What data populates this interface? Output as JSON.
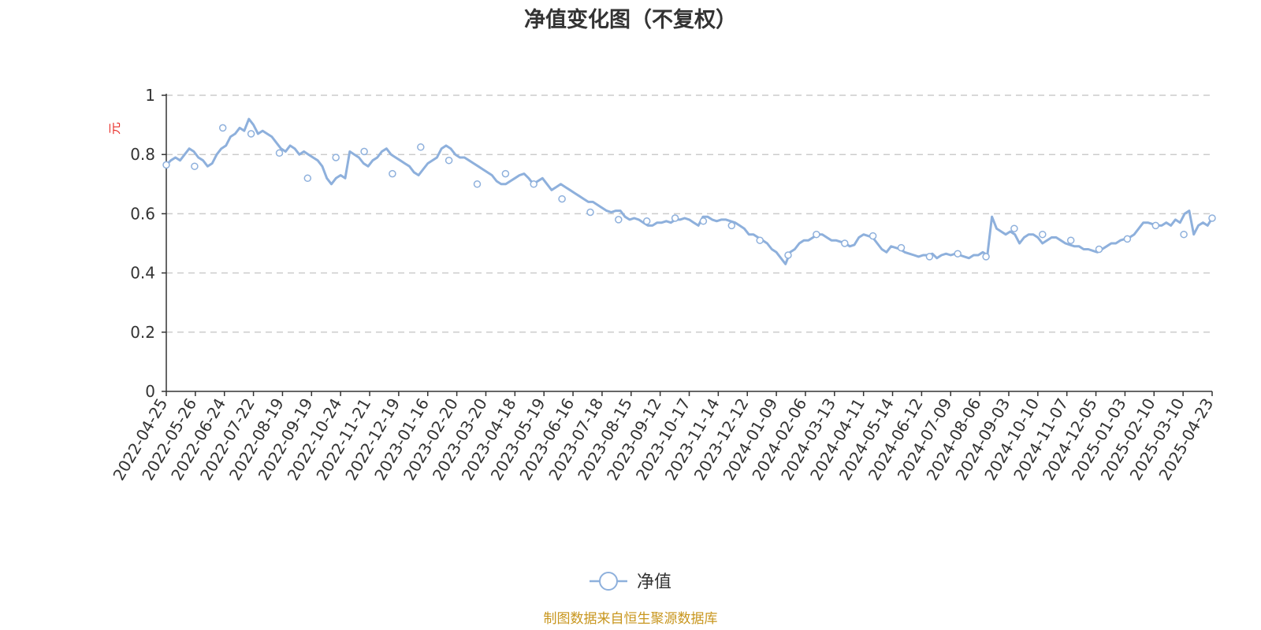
{
  "chart_data": {
    "type": "line",
    "title": "净值变化图（不复权）",
    "ylabel": "元",
    "ylim": [
      0,
      1
    ],
    "yticks": [
      "0",
      "0.2",
      "0.4",
      "0.6",
      "0.8",
      "1"
    ],
    "grid": true,
    "legend_position": "bottom",
    "x_tick_labels": [
      "2022-04-25",
      "2022-05-26",
      "2022-06-24",
      "2022-07-22",
      "2022-08-19",
      "2022-09-19",
      "2022-10-24",
      "2022-11-21",
      "2022-12-19",
      "2023-01-16",
      "2023-02-20",
      "2023-03-20",
      "2023-04-18",
      "2023-05-19",
      "2023-06-16",
      "2023-07-18",
      "2023-08-15",
      "2023-09-12",
      "2023-10-17",
      "2023-11-14",
      "2023-12-12",
      "2024-01-09",
      "2024-02-06",
      "2024-03-13",
      "2024-04-11",
      "2024-05-14",
      "2024-06-12",
      "2024-07-09",
      "2024-08-06",
      "2024-09-03",
      "2024-10-10",
      "2024-11-07",
      "2024-12-05",
      "2025-01-03",
      "2025-02-10",
      "2025-03-10",
      "2025-04-23"
    ],
    "series": [
      {
        "name": "净值",
        "color": "#8eb0dc",
        "marker_values": [
          0.765,
          0.76,
          0.89,
          0.87,
          0.805,
          0.72,
          0.79,
          0.81,
          0.735,
          0.825,
          0.78,
          0.7,
          0.735,
          0.7,
          0.65,
          0.605,
          0.58,
          0.575,
          0.585,
          0.575,
          0.56,
          0.51,
          0.46,
          0.53,
          0.5,
          0.525,
          0.485,
          0.455,
          0.465,
          0.455,
          0.55,
          0.53,
          0.51,
          0.48,
          0.515,
          0.56,
          0.53,
          0.585
        ],
        "path_values": [
          0.765,
          0.78,
          0.79,
          0.78,
          0.8,
          0.82,
          0.81,
          0.79,
          0.78,
          0.76,
          0.77,
          0.8,
          0.82,
          0.83,
          0.86,
          0.87,
          0.89,
          0.88,
          0.92,
          0.9,
          0.87,
          0.88,
          0.87,
          0.86,
          0.84,
          0.82,
          0.81,
          0.83,
          0.82,
          0.8,
          0.81,
          0.8,
          0.79,
          0.78,
          0.76,
          0.72,
          0.7,
          0.72,
          0.73,
          0.72,
          0.81,
          0.8,
          0.79,
          0.77,
          0.76,
          0.78,
          0.79,
          0.81,
          0.82,
          0.8,
          0.79,
          0.78,
          0.77,
          0.76,
          0.74,
          0.73,
          0.75,
          0.77,
          0.78,
          0.79,
          0.82,
          0.83,
          0.82,
          0.8,
          0.79,
          0.79,
          0.78,
          0.77,
          0.76,
          0.75,
          0.74,
          0.73,
          0.71,
          0.7,
          0.7,
          0.71,
          0.72,
          0.73,
          0.735,
          0.72,
          0.7,
          0.71,
          0.72,
          0.7,
          0.68,
          0.69,
          0.7,
          0.69,
          0.68,
          0.67,
          0.66,
          0.65,
          0.64,
          0.64,
          0.63,
          0.62,
          0.61,
          0.605,
          0.61,
          0.61,
          0.59,
          0.58,
          0.585,
          0.58,
          0.57,
          0.56,
          0.56,
          0.57,
          0.57,
          0.575,
          0.57,
          0.58,
          0.58,
          0.585,
          0.58,
          0.57,
          0.56,
          0.59,
          0.59,
          0.58,
          0.575,
          0.58,
          0.58,
          0.575,
          0.57,
          0.56,
          0.55,
          0.53,
          0.53,
          0.52,
          0.51,
          0.5,
          0.48,
          0.47,
          0.45,
          0.43,
          0.47,
          0.48,
          0.5,
          0.51,
          0.51,
          0.52,
          0.53,
          0.53,
          0.52,
          0.51,
          0.51,
          0.505,
          0.5,
          0.49,
          0.495,
          0.52,
          0.53,
          0.525,
          0.52,
          0.5,
          0.48,
          0.47,
          0.49,
          0.485,
          0.48,
          0.47,
          0.465,
          0.46,
          0.455,
          0.46,
          0.46,
          0.465,
          0.45,
          0.46,
          0.465,
          0.46,
          0.465,
          0.46,
          0.455,
          0.45,
          0.46,
          0.46,
          0.47,
          0.46,
          0.59,
          0.55,
          0.54,
          0.53,
          0.54,
          0.53,
          0.5,
          0.52,
          0.53,
          0.53,
          0.52,
          0.5,
          0.51,
          0.52,
          0.52,
          0.51,
          0.5,
          0.495,
          0.49,
          0.49,
          0.48,
          0.48,
          0.475,
          0.47,
          0.48,
          0.49,
          0.5,
          0.5,
          0.51,
          0.515,
          0.52,
          0.53,
          0.55,
          0.57,
          0.57,
          0.565,
          0.56,
          0.56,
          0.57,
          0.56,
          0.58,
          0.57,
          0.6,
          0.61,
          0.53,
          0.56,
          0.57,
          0.56,
          0.585
        ]
      }
    ],
    "source_note": "制图数据来自恒生聚源数据库"
  }
}
